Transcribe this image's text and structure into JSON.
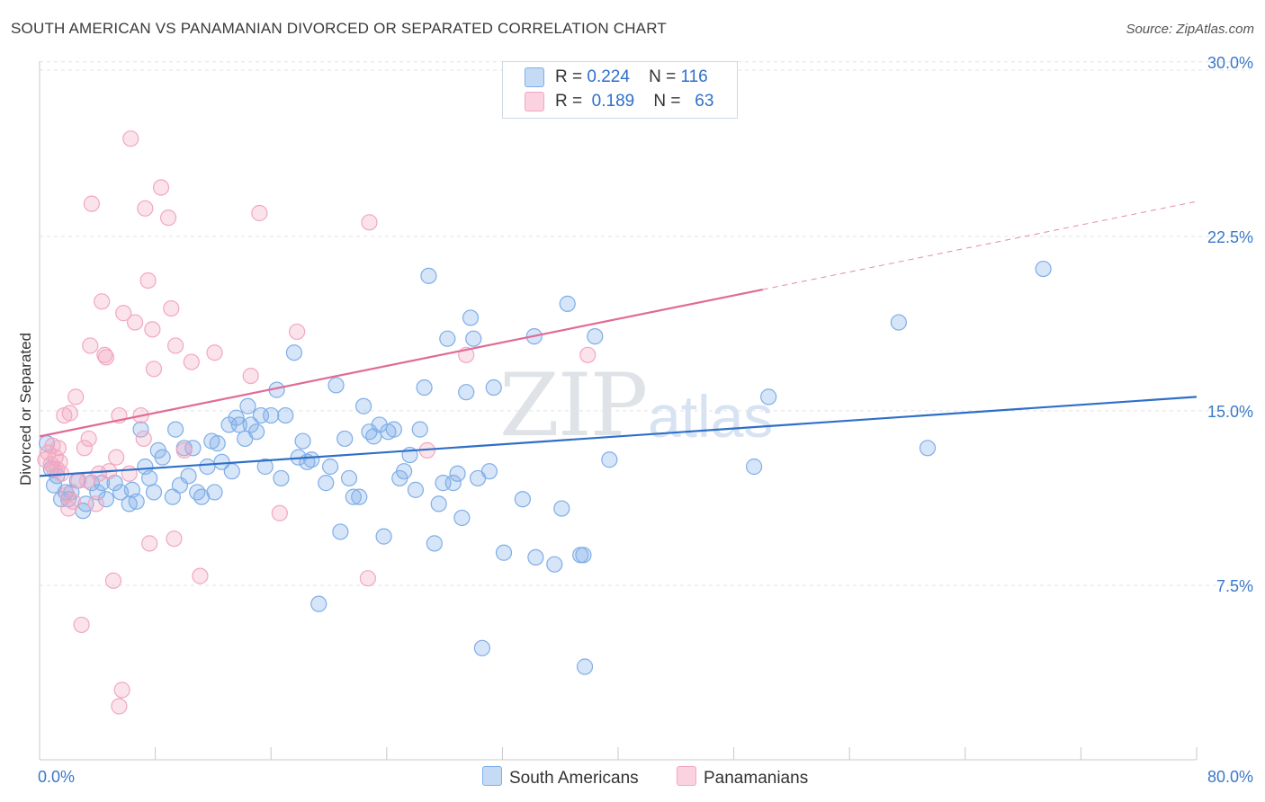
{
  "title": "SOUTH AMERICAN VS PANAMANIAN DIVORCED OR SEPARATED CORRELATION CHART",
  "source": "Source: ZipAtlas.com",
  "watermark": {
    "zip": "ZIP",
    "atlas": "atlas"
  },
  "colors": {
    "blue": "#7eaee8",
    "blue_line": "#2f6fc8",
    "pink": "#f2a7c0",
    "pink_line": "#e06b97",
    "axis_text": "#3a78c9",
    "grid": "#e3e3e3"
  },
  "legend_top": {
    "rows": [
      {
        "r_label": "R =",
        "r_value": "0.224",
        "n_label": "N =",
        "n_value": "116"
      },
      {
        "r_label": "R =",
        "r_value": "0.189",
        "n_label": "N =",
        "n_value": "63"
      }
    ]
  },
  "legend_bottom": [
    {
      "label": "South Americans"
    },
    {
      "label": "Panamanians"
    }
  ],
  "chart_data": {
    "type": "scatter",
    "title": "SOUTH AMERICAN VS PANAMANIAN DIVORCED OR SEPARATED CORRELATION CHART",
    "xlabel": "",
    "ylabel": "Divorced or Separated",
    "xlim": [
      0,
      80
    ],
    "ylim": [
      0,
      31.5
    ],
    "x_tick_labels": [
      "0.0%",
      "80.0%"
    ],
    "y_tick_labels": [
      "7.5%",
      "15.0%",
      "22.5%",
      "30.0%"
    ],
    "y_ticks": [
      7.5,
      15.0,
      22.5,
      30.0
    ],
    "grid": true,
    "legend_position": "top-center",
    "series": [
      {
        "name": "South Americans",
        "r": 0.224,
        "n": 116,
        "trend": {
          "x": [
            0,
            80
          ],
          "y": [
            12.2,
            15.6
          ]
        },
        "points": [
          [
            0.5,
            13.6
          ],
          [
            0.8,
            12.5
          ],
          [
            1.0,
            11.8
          ],
          [
            1.2,
            12.2
          ],
          [
            1.5,
            11.2
          ],
          [
            1.8,
            11.5
          ],
          [
            2.0,
            11.2
          ],
          [
            2.2,
            11.5
          ],
          [
            2.6,
            12.0
          ],
          [
            3.0,
            10.7
          ],
          [
            3.2,
            11.0
          ],
          [
            3.6,
            11.9
          ],
          [
            4.0,
            11.5
          ],
          [
            4.3,
            11.9
          ],
          [
            4.6,
            11.2
          ],
          [
            5.2,
            11.9
          ],
          [
            5.6,
            11.5
          ],
          [
            6.2,
            11.0
          ],
          [
            6.4,
            11.6
          ],
          [
            6.7,
            11.1
          ],
          [
            7.0,
            14.2
          ],
          [
            7.3,
            12.6
          ],
          [
            7.6,
            12.1
          ],
          [
            7.9,
            11.5
          ],
          [
            8.2,
            13.3
          ],
          [
            8.5,
            13.0
          ],
          [
            9.2,
            11.3
          ],
          [
            9.4,
            14.2
          ],
          [
            9.7,
            11.8
          ],
          [
            10.0,
            13.4
          ],
          [
            10.3,
            12.2
          ],
          [
            10.6,
            13.4
          ],
          [
            10.9,
            11.5
          ],
          [
            11.2,
            11.3
          ],
          [
            11.6,
            12.6
          ],
          [
            11.9,
            13.7
          ],
          [
            12.1,
            11.5
          ],
          [
            12.3,
            13.6
          ],
          [
            12.6,
            12.8
          ],
          [
            13.1,
            14.4
          ],
          [
            13.3,
            12.4
          ],
          [
            13.6,
            14.7
          ],
          [
            13.8,
            14.4
          ],
          [
            14.2,
            13.8
          ],
          [
            14.4,
            15.2
          ],
          [
            14.6,
            14.4
          ],
          [
            15.0,
            14.1
          ],
          [
            15.3,
            14.8
          ],
          [
            15.6,
            12.6
          ],
          [
            16.0,
            14.8
          ],
          [
            16.4,
            15.9
          ],
          [
            16.7,
            12.1
          ],
          [
            17.0,
            14.8
          ],
          [
            17.6,
            17.5
          ],
          [
            17.9,
            13.0
          ],
          [
            18.2,
            13.7
          ],
          [
            18.5,
            12.8
          ],
          [
            18.8,
            12.9
          ],
          [
            19.3,
            6.7
          ],
          [
            19.8,
            11.9
          ],
          [
            20.1,
            12.6
          ],
          [
            20.5,
            16.1
          ],
          [
            20.8,
            9.8
          ],
          [
            21.1,
            13.8
          ],
          [
            21.4,
            12.1
          ],
          [
            21.7,
            11.3
          ],
          [
            22.1,
            11.3
          ],
          [
            22.4,
            15.2
          ],
          [
            22.8,
            14.1
          ],
          [
            23.1,
            13.9
          ],
          [
            23.5,
            14.4
          ],
          [
            23.8,
            9.6
          ],
          [
            24.1,
            14.1
          ],
          [
            24.5,
            14.2
          ],
          [
            24.9,
            12.1
          ],
          [
            25.2,
            12.4
          ],
          [
            25.6,
            13.1
          ],
          [
            26.0,
            11.6
          ],
          [
            26.3,
            14.2
          ],
          [
            26.6,
            16.0
          ],
          [
            26.9,
            20.8
          ],
          [
            27.3,
            9.3
          ],
          [
            27.6,
            11.0
          ],
          [
            27.9,
            11.9
          ],
          [
            28.2,
            18.1
          ],
          [
            28.6,
            11.9
          ],
          [
            28.9,
            12.3
          ],
          [
            29.2,
            10.4
          ],
          [
            29.5,
            15.8
          ],
          [
            29.8,
            19.0
          ],
          [
            30.0,
            18.1
          ],
          [
            30.3,
            12.1
          ],
          [
            30.6,
            4.8
          ],
          [
            31.1,
            12.4
          ],
          [
            31.4,
            16.0
          ],
          [
            32.1,
            8.9
          ],
          [
            33.4,
            11.2
          ],
          [
            34.2,
            18.2
          ],
          [
            34.3,
            8.7
          ],
          [
            35.6,
            8.4
          ],
          [
            36.1,
            10.8
          ],
          [
            36.5,
            19.6
          ],
          [
            37.4,
            8.8
          ],
          [
            37.6,
            8.8
          ],
          [
            38.4,
            18.2
          ],
          [
            37.7,
            4.0
          ],
          [
            39.4,
            12.9
          ],
          [
            49.4,
            12.6
          ],
          [
            50.4,
            15.6
          ],
          [
            59.4,
            18.8
          ],
          [
            61.4,
            13.4
          ],
          [
            69.4,
            21.1
          ]
        ]
      },
      {
        "name": "Panamanians",
        "r": 0.189,
        "n": 63,
        "trend": {
          "x": [
            0,
            80
          ],
          "y": [
            13.9,
            24.0
          ],
          "solid_until": 50
        },
        "points": [
          [
            0.4,
            12.9
          ],
          [
            0.6,
            13.2
          ],
          [
            0.8,
            12.7
          ],
          [
            0.9,
            13.5
          ],
          [
            1.0,
            12.5
          ],
          [
            1.1,
            13.0
          ],
          [
            1.2,
            12.5
          ],
          [
            1.3,
            13.4
          ],
          [
            1.4,
            12.8
          ],
          [
            1.5,
            12.3
          ],
          [
            1.7,
            14.8
          ],
          [
            1.9,
            11.4
          ],
          [
            2.0,
            10.8
          ],
          [
            2.1,
            14.9
          ],
          [
            2.3,
            11.1
          ],
          [
            2.5,
            15.6
          ],
          [
            2.7,
            12.0
          ],
          [
            2.9,
            5.8
          ],
          [
            3.1,
            13.4
          ],
          [
            3.3,
            12.0
          ],
          [
            3.4,
            13.8
          ],
          [
            3.5,
            17.8
          ],
          [
            3.6,
            23.9
          ],
          [
            3.9,
            11.0
          ],
          [
            4.1,
            12.3
          ],
          [
            4.3,
            19.7
          ],
          [
            4.5,
            17.4
          ],
          [
            4.6,
            17.3
          ],
          [
            4.8,
            12.4
          ],
          [
            5.1,
            7.7
          ],
          [
            5.3,
            13.0
          ],
          [
            5.5,
            14.8
          ],
          [
            5.5,
            2.3
          ],
          [
            5.7,
            3.0
          ],
          [
            5.8,
            19.2
          ],
          [
            6.2,
            12.3
          ],
          [
            6.3,
            26.7
          ],
          [
            6.6,
            18.8
          ],
          [
            7.0,
            14.8
          ],
          [
            7.2,
            13.8
          ],
          [
            7.3,
            23.7
          ],
          [
            7.5,
            20.6
          ],
          [
            7.6,
            9.3
          ],
          [
            7.8,
            18.5
          ],
          [
            7.9,
            16.8
          ],
          [
            8.4,
            24.6
          ],
          [
            8.9,
            23.3
          ],
          [
            9.1,
            19.4
          ],
          [
            9.3,
            9.5
          ],
          [
            9.4,
            17.8
          ],
          [
            10.0,
            13.3
          ],
          [
            10.5,
            17.1
          ],
          [
            11.1,
            7.9
          ],
          [
            12.1,
            17.5
          ],
          [
            14.6,
            16.5
          ],
          [
            15.2,
            23.5
          ],
          [
            16.6,
            10.6
          ],
          [
            17.8,
            18.4
          ],
          [
            22.7,
            7.8
          ],
          [
            22.8,
            23.1
          ],
          [
            26.8,
            13.3
          ],
          [
            29.5,
            17.4
          ],
          [
            37.9,
            17.4
          ]
        ]
      }
    ]
  }
}
